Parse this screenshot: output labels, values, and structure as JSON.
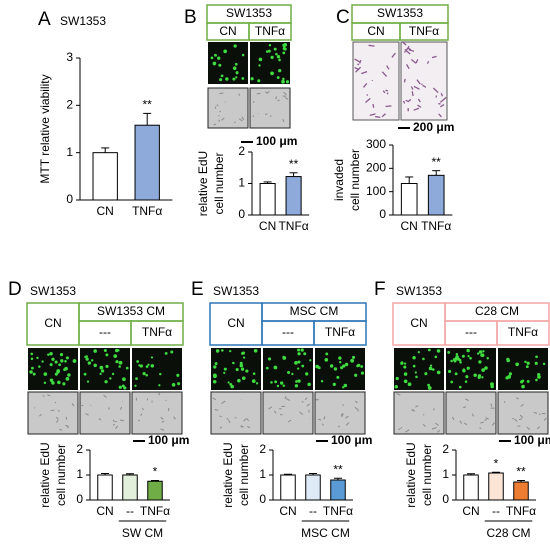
{
  "chart_data": [
    {
      "type": "bar",
      "panel": "A",
      "title": "SW1353",
      "ylabel": "MTT relative viability",
      "categories": [
        "CN",
        "TNFα"
      ],
      "values": [
        1.0,
        1.58
      ],
      "errors": [
        0.1,
        0.25
      ],
      "colors": [
        "#ffffff",
        "#8eaadb"
      ],
      "significance": [
        null,
        "**"
      ],
      "ylim": [
        0,
        3
      ],
      "yticks": [
        0,
        1,
        2,
        3
      ]
    },
    {
      "type": "bar",
      "panel": "B",
      "header": {
        "title": "SW1353",
        "columns": [
          "CN",
          "TNFα"
        ]
      },
      "scale_bar": "100 μm",
      "ylabel": [
        "relative EdU",
        "cell number"
      ],
      "categories": [
        "CN",
        "TNFα"
      ],
      "values": [
        1.0,
        1.22
      ],
      "errors": [
        0.05,
        0.12
      ],
      "colors": [
        "#ffffff",
        "#8eaadb"
      ],
      "significance": [
        null,
        "**"
      ],
      "ylim": [
        0,
        2
      ],
      "yticks": [
        0,
        1,
        2
      ]
    },
    {
      "type": "bar",
      "panel": "C",
      "header": {
        "title": "SW1353",
        "columns": [
          "CN",
          "TNFα"
        ]
      },
      "scale_bar": "200 μm",
      "ylabel": [
        "invaded",
        "cell number"
      ],
      "categories": [
        "CN",
        "TNFα"
      ],
      "values": [
        135,
        170
      ],
      "errors": [
        28,
        20
      ],
      "colors": [
        "#ffffff",
        "#8eaadb"
      ],
      "significance": [
        null,
        "**"
      ],
      "ylim": [
        0,
        300
      ],
      "yticks": [
        0,
        100,
        200,
        300
      ]
    },
    {
      "type": "bar",
      "panel": "D",
      "title": "SW1353",
      "header": {
        "control": "CN",
        "title": "SW1353 CM",
        "columns": [
          "---",
          "TNFα"
        ]
      },
      "scale_bar": "100 μm",
      "ylabel": [
        "relative EdU",
        "cell number"
      ],
      "categories": [
        "CN",
        "--",
        "TNFα"
      ],
      "values": [
        1.0,
        1.0,
        0.75
      ],
      "errors": [
        0.06,
        0.05,
        0.03
      ],
      "colors": [
        "#ffffff",
        "#e2efda",
        "#70ad47"
      ],
      "significance": [
        null,
        null,
        "*"
      ],
      "group_label": "SW CM",
      "ylim": [
        0,
        2
      ],
      "yticks": [
        0,
        1,
        2
      ],
      "frame_color": "#70ad47"
    },
    {
      "type": "bar",
      "panel": "E",
      "title": "SW1353",
      "header": {
        "control": "CN",
        "title": "MSC CM",
        "columns": [
          "---",
          "TNFα"
        ]
      },
      "scale_bar": "100 μm",
      "ylabel": [
        "relative EdU",
        "cell number"
      ],
      "categories": [
        "CN",
        "--",
        "TNFα"
      ],
      "values": [
        1.0,
        1.0,
        0.8
      ],
      "errors": [
        0.03,
        0.06,
        0.07
      ],
      "colors": [
        "#ffffff",
        "#deebf7",
        "#5b9bd5"
      ],
      "significance": [
        null,
        null,
        "**"
      ],
      "group_label": "MSC CM",
      "ylim": [
        0,
        2
      ],
      "yticks": [
        0,
        1,
        2
      ],
      "frame_color": "#2e75b6"
    },
    {
      "type": "bar",
      "panel": "F",
      "title": "SW1353",
      "header": {
        "control": "CN",
        "title": "C28 CM",
        "columns": [
          "---",
          "TNFα"
        ]
      },
      "scale_bar": "100 μm",
      "ylabel": [
        "relative EdU",
        "cell number"
      ],
      "categories": [
        "CN",
        "--",
        "TNFα"
      ],
      "values": [
        1.0,
        1.08,
        0.72
      ],
      "errors": [
        0.05,
        0.03,
        0.06
      ],
      "colors": [
        "#ffffff",
        "#fbe5d6",
        "#ed7d31"
      ],
      "significance": [
        null,
        "*",
        "**"
      ],
      "group_label": "C28 CM",
      "ylim": [
        0,
        2
      ],
      "yticks": [
        0,
        1,
        2
      ],
      "frame_color": "#f4a6a6"
    }
  ]
}
